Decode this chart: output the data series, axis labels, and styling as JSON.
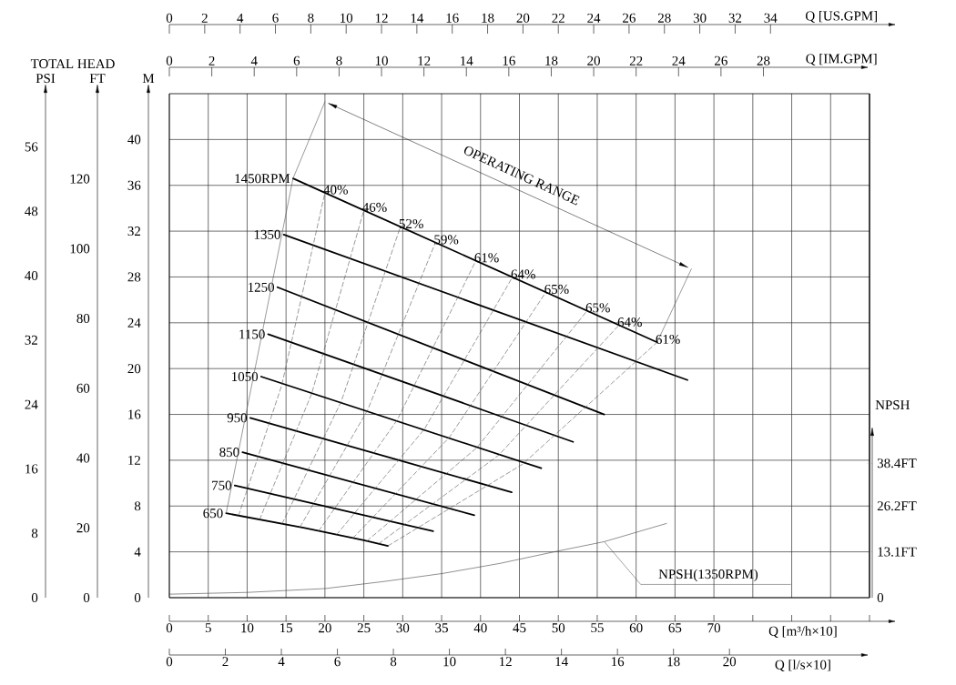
{
  "chart_data": [
    {
      "type": "line",
      "grid": true,
      "marker": "none",
      "xlabel": "Q [m³/h×10]",
      "x2label": "Q [US.GPM]",
      "ylabel": "M",
      "y2label": "FT",
      "xlim": [
        0,
        90
      ],
      "xticks": [
        0,
        5,
        10,
        15,
        20,
        25,
        30,
        35,
        40,
        45,
        50,
        55,
        60,
        65,
        70,
        {
          "value": 75,
          "label": null
        },
        {
          "value": 80,
          "label": null
        },
        {
          "value": 85,
          "label": null
        },
        {
          "value": 90,
          "label": null
        }
      ],
      "x2lim": [
        0,
        39.6
      ],
      "x2ticks": [
        0,
        2,
        4,
        6,
        8,
        10,
        12,
        14,
        16,
        18,
        20,
        22,
        24,
        26,
        28,
        30,
        32,
        34
      ],
      "ylim": [
        0,
        44
      ],
      "yticks": [
        0,
        4,
        8,
        12,
        16,
        20,
        24,
        28,
        32,
        36,
        40
      ],
      "y2lim": [
        0,
        144.4
      ],
      "y2ticks": [
        0,
        20,
        40,
        60,
        80,
        100,
        120
      ],
      "annotations": [
        "TOTAL HEAD",
        "OPERATING RANGE",
        {
          "text": "40%",
          "x": 20.0,
          "y": 35.35
        },
        {
          "text": "46%",
          "x": 25.0,
          "y": 33.82
        },
        {
          "text": "52%",
          "x": 29.7,
          "y": 32.38
        },
        {
          "text": "59%",
          "x": 34.2,
          "y": 31.0
        },
        {
          "text": "61%",
          "x": 39.4,
          "y": 29.42
        },
        {
          "text": "64%",
          "x": 44.1,
          "y": 27.98
        },
        {
          "text": "65%",
          "x": 48.4,
          "y": 26.67
        },
        {
          "text": "65%",
          "x": 53.7,
          "y": 25.05
        },
        {
          "text": "64%",
          "x": 57.8,
          "y": 23.8
        },
        {
          "text": "61%",
          "x": 62.7,
          "y": 22.3
        }
      ],
      "series": [
        {
          "name": "1450RPM",
          "color": "#000000",
          "x": [
            15.9,
            62.7
          ],
          "values": [
            36.6,
            22.3
          ]
        },
        {
          "name": "1350",
          "color": "#000000",
          "x": [
            14.7,
            66.6
          ],
          "values": [
            31.7,
            19.0
          ]
        },
        {
          "name": "1250",
          "color": "#000000",
          "x": [
            13.9,
            55.9
          ],
          "values": [
            27.1,
            16.0
          ]
        },
        {
          "name": "1150",
          "color": "#000000",
          "x": [
            12.7,
            51.9
          ],
          "values": [
            23.0,
            13.6
          ]
        },
        {
          "name": "1050",
          "color": "#000000",
          "x": [
            11.8,
            47.8
          ],
          "values": [
            19.3,
            11.3
          ]
        },
        {
          "name": "950",
          "color": "#000000",
          "x": [
            10.4,
            44.0
          ],
          "values": [
            15.7,
            9.2
          ]
        },
        {
          "name": "850",
          "color": "#000000",
          "x": [
            9.4,
            39.2
          ],
          "values": [
            12.7,
            7.2
          ]
        },
        {
          "name": "750",
          "color": "#000000",
          "x": [
            8.4,
            33.9
          ],
          "values": [
            9.8,
            5.8
          ]
        },
        {
          "name": "650",
          "color": "#000000",
          "x": [
            7.3,
            17.4,
            25.0,
            28.1
          ],
          "values": [
            7.37,
            6.09,
            5.01,
            4.52
          ]
        },
        {
          "color": "#555555",
          "line_style": "dashed",
          "x": [
            8.9,
            14.45,
            20.0
          ],
          "values": [
            7.17,
            18.55,
            35.35
          ]
        },
        {
          "color": "#555555",
          "line_style": "dashed",
          "x": [
            11.6,
            18.3,
            25.0
          ],
          "values": [
            6.82,
            17.82,
            33.82
          ]
        },
        {
          "color": "#555555",
          "line_style": "dashed",
          "x": [
            14.5,
            22.1,
            29.7
          ],
          "values": [
            6.46,
            17.14,
            32.38
          ]
        },
        {
          "color": "#555555",
          "line_style": "dashed",
          "x": [
            16.8,
            25.5,
            34.2
          ],
          "values": [
            6.17,
            16.4,
            31.0
          ]
        },
        {
          "color": "#555555",
          "line_style": "dashed",
          "x": [
            19.2,
            29.3,
            39.4
          ],
          "values": [
            5.83,
            15.52,
            29.42
          ]
        },
        {
          "color": "#555555",
          "line_style": "dashed",
          "x": [
            21.5,
            32.8,
            44.1
          ],
          "values": [
            5.5,
            14.73,
            27.98
          ]
        },
        {
          "color": "#555555",
          "line_style": "dashed",
          "x": [
            23.6,
            36.0,
            48.4
          ],
          "values": [
            5.2,
            14.0,
            26.67
          ]
        },
        {
          "color": "#555555",
          "line_style": "dashed",
          "x": [
            25.4,
            39.55,
            53.7
          ],
          "values": [
            4.95,
            13.11,
            25.05
          ]
        },
        {
          "color": "#555555",
          "line_style": "dashed",
          "x": [
            26.9,
            42.35,
            57.8
          ],
          "values": [
            4.71,
            12.45,
            23.8
          ]
        },
        {
          "color": "#555555",
          "line_style": "dashed",
          "x": [
            28.1,
            45.4,
            62.7
          ],
          "values": [
            4.52,
            11.65,
            22.3
          ]
        },
        {
          "color": "#555555",
          "x": [
            7.3,
            15.9,
            20.0
          ],
          "values": [
            7.37,
            36.6,
            43.3
          ]
        },
        {
          "color": "#555555",
          "x": [
            62.7,
            67.1
          ],
          "values": [
            22.3,
            28.7
          ]
        }
      ]
    },
    {
      "type": "line",
      "marker": "none",
      "xlabel": "Q [l/s×10]",
      "x2label": "Q [IM.GPM]",
      "ylabel": "PSI",
      "y2label": "NPSH",
      "xlim": [
        0,
        25
      ],
      "xticks": [
        0,
        2,
        4,
        6,
        8,
        10,
        12,
        14,
        16,
        18,
        20
      ],
      "x2lim": [
        0,
        33
      ],
      "x2ticks": [
        0,
        2,
        4,
        6,
        8,
        10,
        12,
        14,
        16,
        18,
        20,
        22,
        24,
        26,
        28
      ],
      "ylim": [
        0,
        62.6
      ],
      "yticks": [
        0,
        8,
        16,
        24,
        32,
        40,
        48,
        56
      ],
      "y2lim": [
        0,
        46
      ],
      "y2ticks": [
        0,
        {
          "value": 13.1,
          "label": "13.1FT"
        },
        {
          "value": 26.2,
          "label": "26.2FT"
        },
        {
          "value": 38.4,
          "label": "38.4FT"
        }
      ],
      "series": [
        {
          "name": "NPSH(1350RPM)",
          "color": "#444444",
          "axis": "y2",
          "x": [
            0,
            2.78,
            5.56,
            7.64,
            9.75,
            11.81,
            13.92,
            15.53,
            17.75
          ],
          "values": [
            1.0,
            1.5,
            2.6,
            4.6,
            6.9,
            9.8,
            13.4,
            16.0,
            21.2
          ]
        }
      ]
    }
  ]
}
